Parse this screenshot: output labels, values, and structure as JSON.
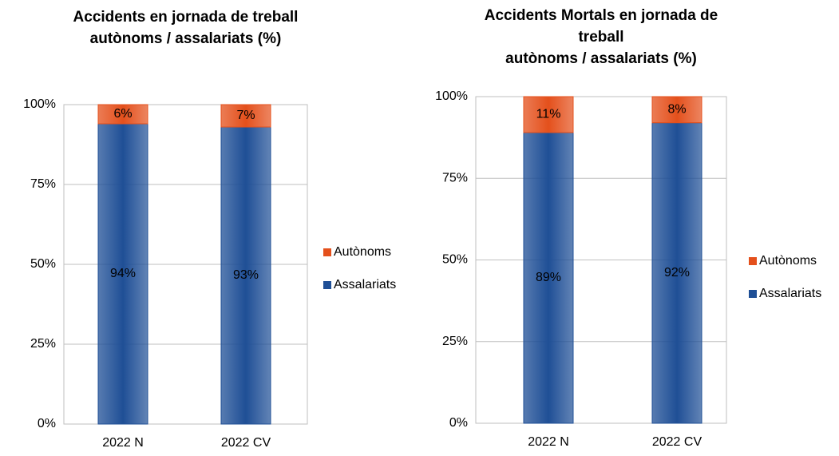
{
  "chart_data": [
    {
      "type": "stacked-bar",
      "title": [
        "Accidents en jornada de treball",
        "autònoms / assalariats (%)"
      ],
      "categories": [
        "2022 N",
        "2022 CV"
      ],
      "series": [
        {
          "name": "Assalariats",
          "color": "#1f4f96",
          "values": [
            94,
            93
          ],
          "value_labels": [
            "94%",
            "93%"
          ]
        },
        {
          "name": "Autònoms",
          "color": "#e4501c",
          "values": [
            6,
            7
          ],
          "value_labels": [
            "6%",
            "7%"
          ]
        }
      ],
      "ylim": [
        0,
        100
      ],
      "yticks": [
        {
          "value": 0,
          "label": "0%"
        },
        {
          "value": 25,
          "label": "25%"
        },
        {
          "value": 50,
          "label": "50%"
        },
        {
          "value": 75,
          "label": "75%"
        },
        {
          "value": 100,
          "label": "100%"
        }
      ],
      "grid": true,
      "legend": "right"
    },
    {
      "type": "stacked-bar",
      "title": [
        "Accidents Mortals en jornada de",
        "treball",
        "autònoms / assalariats (%)"
      ],
      "categories": [
        "2022 N",
        "2022 CV"
      ],
      "series": [
        {
          "name": "Assalariats",
          "color": "#1f4f96",
          "values": [
            89,
            92
          ],
          "value_labels": [
            "89%",
            "92%"
          ]
        },
        {
          "name": "Autònoms",
          "color": "#e4501c",
          "values": [
            11,
            8
          ],
          "value_labels": [
            "11%",
            "8%"
          ]
        }
      ],
      "ylim": [
        0,
        100
      ],
      "yticks": [
        {
          "value": 0,
          "label": "0%"
        },
        {
          "value": 25,
          "label": "25%"
        },
        {
          "value": 50,
          "label": "50%"
        },
        {
          "value": 75,
          "label": "75%"
        },
        {
          "value": 100,
          "label": "100%"
        }
      ],
      "grid": true,
      "legend": "right"
    }
  ]
}
